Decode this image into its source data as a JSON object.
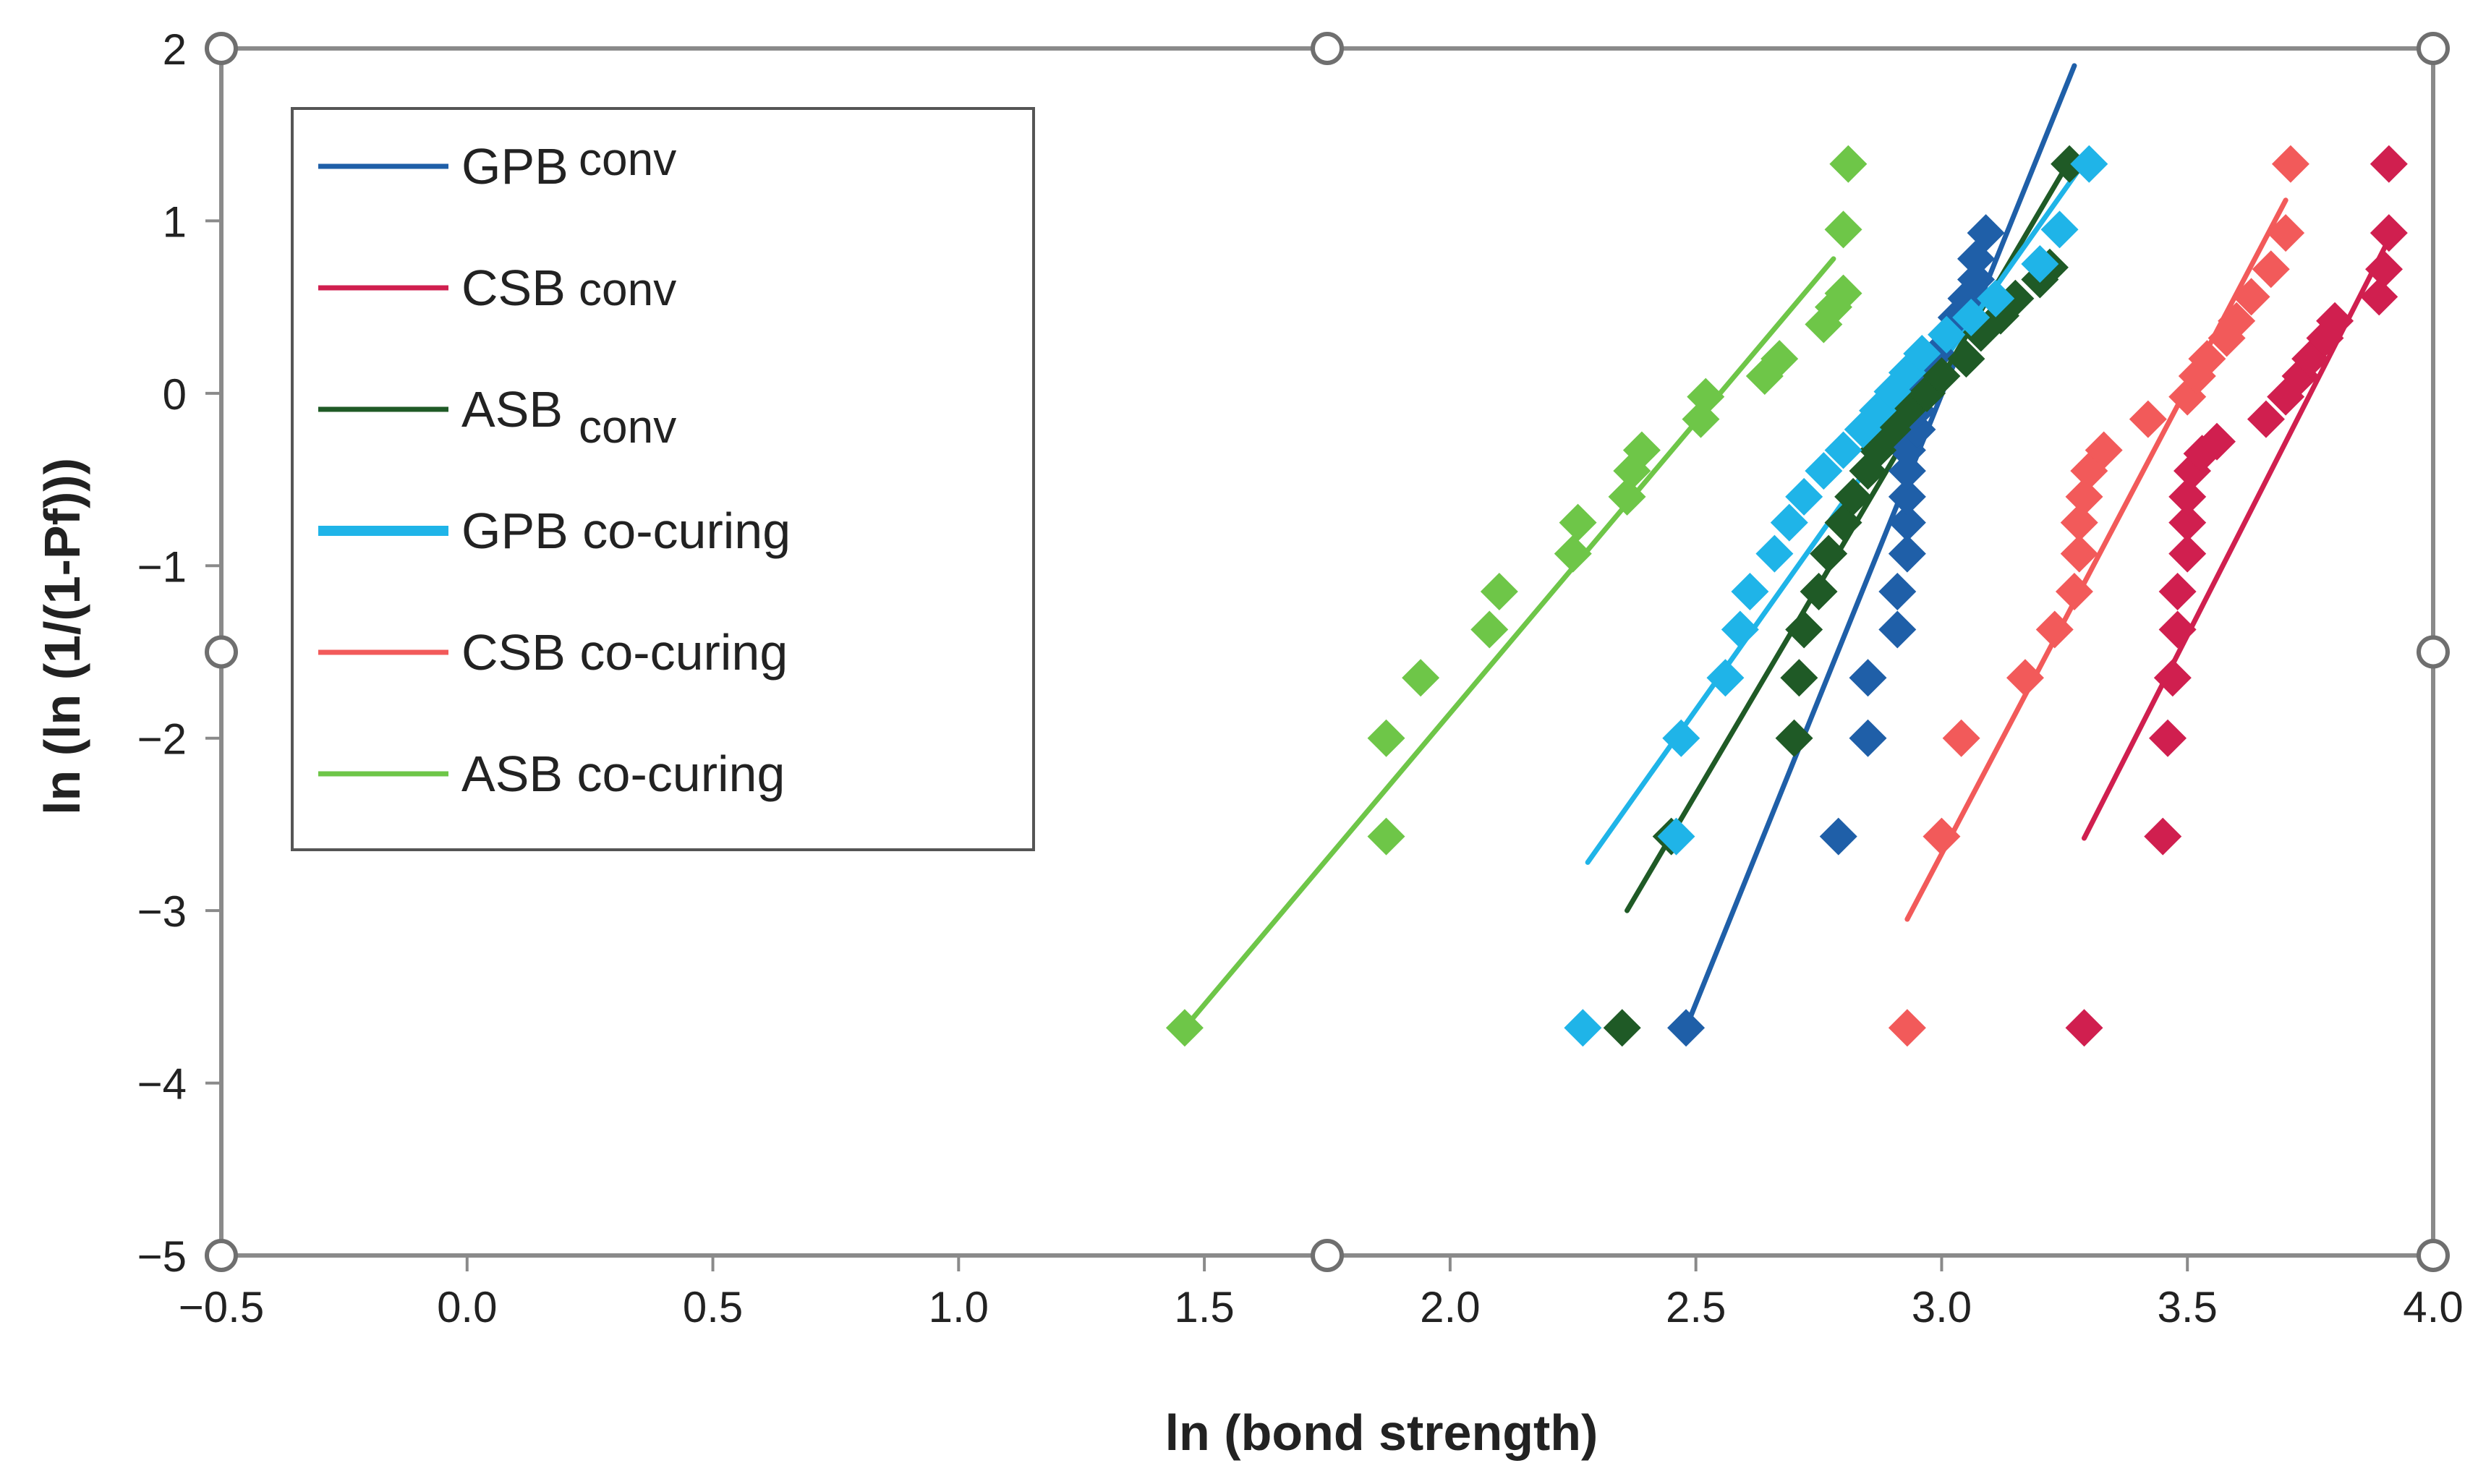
{
  "chart_data": {
    "type": "scatter",
    "title": "",
    "xlabel": "ln (bond strength)",
    "ylabel": "ln (ln (1/(1-Pf)))",
    "xlim": [
      -0.5,
      4.0
    ],
    "ylim": [
      -5,
      2
    ],
    "x_ticks": [
      "−0.5",
      "0.0",
      "0.5",
      "1.0",
      "1.5",
      "2.0",
      "2.5",
      "3.0",
      "3.5",
      "4.0"
    ],
    "y_ticks": [
      "2",
      "1",
      "0",
      "−1",
      "−2",
      "−3",
      "−4",
      "−5"
    ],
    "legend_position": "top-left",
    "series": [
      {
        "name": "GPB",
        "suffix": "conv",
        "color": "#1f5fa8",
        "points": [
          [
            2.48,
            -3.68
          ],
          [
            2.79,
            -2.57
          ],
          [
            2.85,
            -2.0
          ],
          [
            2.85,
            -1.65
          ],
          [
            2.91,
            -1.37
          ],
          [
            2.91,
            -1.15
          ],
          [
            2.93,
            -0.93
          ],
          [
            2.93,
            -0.75
          ],
          [
            2.93,
            -0.6
          ],
          [
            2.93,
            -0.45
          ],
          [
            2.93,
            -0.33
          ],
          [
            2.95,
            -0.21
          ],
          [
            2.95,
            -0.1
          ],
          [
            2.95,
            0.01
          ],
          [
            2.97,
            0.12
          ],
          [
            2.99,
            0.23
          ],
          [
            3.01,
            0.34
          ],
          [
            3.03,
            0.44
          ],
          [
            3.05,
            0.55
          ],
          [
            3.07,
            0.66
          ],
          [
            3.07,
            0.78
          ],
          [
            3.09,
            0.93
          ]
        ],
        "fit": [
          [
            2.48,
            -3.68
          ],
          [
            3.27,
            1.9
          ]
        ]
      },
      {
        "name": "CSB",
        "suffix": "conv",
        "color": "#d01f4f",
        "points": [
          [
            3.29,
            -3.68
          ],
          [
            3.45,
            -2.57
          ],
          [
            3.46,
            -2.0
          ],
          [
            3.47,
            -1.65
          ],
          [
            3.48,
            -1.37
          ],
          [
            3.48,
            -1.15
          ],
          [
            3.5,
            -0.93
          ],
          [
            3.5,
            -0.75
          ],
          [
            3.5,
            -0.6
          ],
          [
            3.51,
            -0.45
          ],
          [
            3.53,
            -0.35
          ],
          [
            3.56,
            -0.28
          ],
          [
            3.66,
            -0.15
          ],
          [
            3.7,
            -0.02
          ],
          [
            3.73,
            0.1
          ],
          [
            3.75,
            0.2
          ],
          [
            3.78,
            0.32
          ],
          [
            3.8,
            0.42
          ],
          [
            3.89,
            0.56
          ],
          [
            3.9,
            0.72
          ],
          [
            3.91,
            0.93
          ],
          [
            3.91,
            1.33
          ]
        ],
        "fit": [
          [
            3.29,
            -2.58
          ],
          [
            3.92,
            0.95
          ]
        ]
      },
      {
        "name": "ASB",
        "suffix": "conv",
        "color": "#1f5a26",
        "points": [
          [
            2.35,
            -3.68
          ],
          [
            2.45,
            -2.57
          ],
          [
            2.7,
            -2.0
          ],
          [
            2.71,
            -1.65
          ],
          [
            2.72,
            -1.37
          ],
          [
            2.75,
            -1.15
          ],
          [
            2.77,
            -0.93
          ],
          [
            2.8,
            -0.75
          ],
          [
            2.82,
            -0.6
          ],
          [
            2.85,
            -0.45
          ],
          [
            2.87,
            -0.33
          ],
          [
            2.9,
            -0.21
          ],
          [
            2.93,
            -0.1
          ],
          [
            2.97,
            0.0
          ],
          [
            3.0,
            0.1
          ],
          [
            3.05,
            0.2
          ],
          [
            3.08,
            0.35
          ],
          [
            3.12,
            0.45
          ],
          [
            3.15,
            0.55
          ],
          [
            3.2,
            0.66
          ],
          [
            3.22,
            0.73
          ],
          [
            3.26,
            1.33
          ]
        ],
        "fit": [
          [
            2.36,
            -3.0
          ],
          [
            3.25,
            1.3
          ]
        ]
      },
      {
        "name": "GPB co-curing",
        "suffix": "",
        "color": "#1fb4e8",
        "points": [
          [
            2.27,
            -3.68
          ],
          [
            2.46,
            -2.57
          ],
          [
            2.47,
            -2.0
          ],
          [
            2.56,
            -1.65
          ],
          [
            2.59,
            -1.37
          ],
          [
            2.61,
            -1.15
          ],
          [
            2.66,
            -0.93
          ],
          [
            2.69,
            -0.75
          ],
          [
            2.72,
            -0.6
          ],
          [
            2.76,
            -0.45
          ],
          [
            2.8,
            -0.33
          ],
          [
            2.84,
            -0.21
          ],
          [
            2.87,
            -0.1
          ],
          [
            2.9,
            0.01
          ],
          [
            2.93,
            0.12
          ],
          [
            2.96,
            0.23
          ],
          [
            3.01,
            0.34
          ],
          [
            3.06,
            0.44
          ],
          [
            3.11,
            0.55
          ],
          [
            3.2,
            0.75
          ],
          [
            3.24,
            0.95
          ],
          [
            3.3,
            1.33
          ]
        ],
        "fit": [
          [
            2.28,
            -2.72
          ],
          [
            3.28,
            1.3
          ]
        ]
      },
      {
        "name": "CSB co-curing",
        "suffix": "",
        "color": "#f25a5a",
        "points": [
          [
            2.93,
            -3.68
          ],
          [
            3.0,
            -2.57
          ],
          [
            3.04,
            -2.0
          ],
          [
            3.17,
            -1.65
          ],
          [
            3.23,
            -1.37
          ],
          [
            3.27,
            -1.15
          ],
          [
            3.28,
            -0.93
          ],
          [
            3.28,
            -0.75
          ],
          [
            3.29,
            -0.6
          ],
          [
            3.3,
            -0.45
          ],
          [
            3.33,
            -0.33
          ],
          [
            3.42,
            -0.15
          ],
          [
            3.5,
            -0.02
          ],
          [
            3.52,
            0.1
          ],
          [
            3.54,
            0.2
          ],
          [
            3.58,
            0.32
          ],
          [
            3.6,
            0.42
          ],
          [
            3.63,
            0.56
          ],
          [
            3.67,
            0.72
          ],
          [
            3.7,
            0.93
          ],
          [
            3.71,
            1.33
          ]
        ],
        "fit": [
          [
            2.93,
            -3.05
          ],
          [
            3.7,
            1.12
          ]
        ]
      },
      {
        "name": "ASB co-curing",
        "suffix": "",
        "color": "#6ec648",
        "points": [
          [
            1.46,
            -3.68
          ],
          [
            1.87,
            -2.57
          ],
          [
            1.87,
            -2.0
          ],
          [
            1.94,
            -1.65
          ],
          [
            2.08,
            -1.37
          ],
          [
            2.1,
            -1.15
          ],
          [
            2.25,
            -0.93
          ],
          [
            2.26,
            -0.75
          ],
          [
            2.36,
            -0.6
          ],
          [
            2.37,
            -0.45
          ],
          [
            2.39,
            -0.33
          ],
          [
            2.51,
            -0.15
          ],
          [
            2.52,
            -0.02
          ],
          [
            2.64,
            0.1
          ],
          [
            2.67,
            0.2
          ],
          [
            2.76,
            0.4
          ],
          [
            2.78,
            0.5
          ],
          [
            2.8,
            0.58
          ],
          [
            2.8,
            0.95
          ],
          [
            2.81,
            1.33
          ]
        ],
        "fit": [
          [
            1.46,
            -3.68
          ],
          [
            2.78,
            0.78
          ]
        ]
      }
    ]
  }
}
